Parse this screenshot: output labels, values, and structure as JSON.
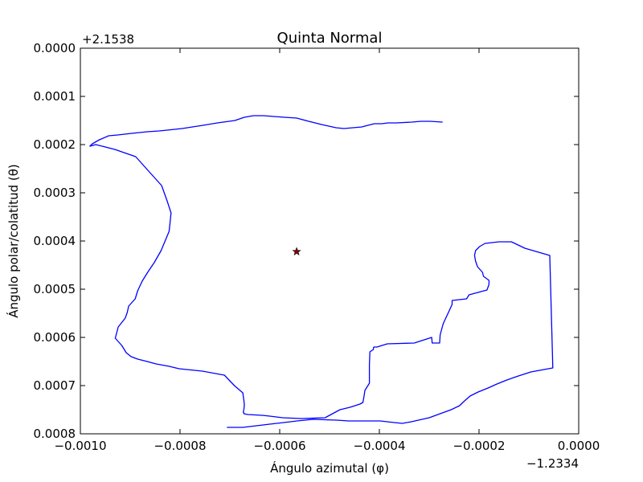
{
  "chart_data": {
    "type": "line",
    "title": "Quinta Normal",
    "xlabel": "Ángulo azimutal (φ)",
    "ylabel": "Ángulo polar/colatitud (θ)",
    "x_offset_label": "−1.2334",
    "y_offset_label": "+2.1538",
    "xlim": [
      -0.001,
      0.0
    ],
    "ylim": [
      0.0008,
      0.0
    ],
    "y_inverted": true,
    "grid": false,
    "x_tick_labels": [
      "−0.0010",
      "−0.0008",
      "−0.0006",
      "−0.0004",
      "−0.0002",
      "0.0000"
    ],
    "x_tick_values": [
      -0.001,
      -0.0008,
      -0.0006,
      -0.0004,
      -0.0002,
      0.0
    ],
    "y_tick_labels": [
      "0.0000",
      "0.0001",
      "0.0002",
      "0.0003",
      "0.0004",
      "0.0005",
      "0.0006",
      "0.0007",
      "0.0008"
    ],
    "y_tick_values": [
      0.0,
      0.0001,
      0.0002,
      0.0003,
      0.0004,
      0.0005,
      0.0006,
      0.0007,
      0.0008
    ],
    "series": [
      {
        "color": "#0000ff",
        "style": "line",
        "x": [
          -0.000706,
          -0.000674,
          -0.000647,
          -0.00062,
          -0.000592,
          -0.000565,
          -0.000533,
          -0.000486,
          -0.000462,
          -0.000429,
          -0.000398,
          -0.00037,
          -0.000354,
          -0.000336,
          -0.0003,
          -0.000278,
          -0.000256,
          -0.000239,
          -0.000229,
          -0.000218,
          -0.000202,
          -0.000182,
          -0.000164,
          -0.000144,
          -0.000121,
          -9.6e-05,
          -5.2e-05,
          -5.8e-05,
          -0.000108,
          -0.000135,
          -0.00016,
          -0.000188,
          -0.000199,
          -0.000207,
          -0.000209,
          -0.000207,
          -0.000203,
          -0.000193,
          -0.000191,
          -0.00018,
          -0.00018,
          -0.000184,
          -0.00022,
          -0.000225,
          -0.000254,
          -0.000254,
          -0.000272,
          -0.000278,
          -0.000279,
          -0.000294,
          -0.000295,
          -0.00033,
          -0.000384,
          -0.000405,
          -0.000411,
          -0.000412,
          -0.000412,
          -0.000419,
          -0.00042,
          -0.00042,
          -0.000429,
          -0.000431,
          -0.000433,
          -0.000439,
          -0.000444,
          -0.000459,
          -0.000479,
          -0.000509,
          -0.000557,
          -0.000594,
          -0.00062,
          -0.000635,
          -0.000664,
          -0.000672,
          -0.000672,
          -0.000673,
          -0.000672,
          -0.000671,
          -0.000672,
          -0.000674,
          -0.000691,
          -0.000711,
          -0.000755,
          -0.000802,
          -0.000822,
          -0.000848,
          -0.000866,
          -0.000885,
          -0.000898,
          -0.000908,
          -0.000917,
          -0.00093,
          -0.000924,
          -0.00091,
          -0.000906,
          -0.000903,
          -0.00089,
          -0.000885,
          -0.000876,
          -0.000865,
          -0.000852,
          -0.000838,
          -0.00083,
          -0.000822,
          -0.00082,
          -0.000818,
          -0.000826,
          -0.000837,
          -0.000866,
          -0.000889,
          -0.000931,
          -0.000969,
          -0.000981,
          -0.000976,
          -0.000962,
          -0.000943,
          -0.000925,
          -0.000897,
          -0.000866,
          -0.000842,
          -0.000826,
          -0.000796,
          -0.000754,
          -0.000725,
          -0.00069,
          -0.000671,
          -0.000653,
          -0.000632,
          -0.000612,
          -0.00059,
          -0.000566,
          -0.000542,
          -0.000516,
          -0.000487,
          -0.000471,
          -0.000453,
          -0.000435,
          -0.000423,
          -0.00041,
          -0.000395,
          -0.000383,
          -0.000366,
          -0.000335,
          -0.000317,
          -0.000298,
          -0.000273
        ],
        "y": [
          0.0007867,
          0.0007867,
          0.0007833,
          0.00078,
          0.0007767,
          0.0007733,
          0.00077,
          0.0007717,
          0.0007733,
          0.0007733,
          0.0007733,
          0.0007767,
          0.0007783,
          0.000775,
          0.0007667,
          0.0007583,
          0.00075,
          0.0007417,
          0.0007317,
          0.0007217,
          0.0007133,
          0.000705,
          0.0006967,
          0.0006883,
          0.00068,
          0.0006717,
          0.0006633,
          0.00043,
          0.000415,
          0.0004017,
          0.0004017,
          0.000405,
          0.0004117,
          0.00042,
          0.00043,
          0.0004417,
          0.0004533,
          0.000465,
          0.0004733,
          0.0004817,
          0.00049,
          0.0005017,
          0.0005117,
          0.00052,
          0.0005233,
          0.0005317,
          0.0005717,
          0.000595,
          0.0006117,
          0.0006117,
          0.0006,
          0.0006117,
          0.0006133,
          0.00062,
          0.00062,
          0.0006217,
          0.000625,
          0.00063,
          0.0006567,
          0.000695,
          0.00071,
          0.0007233,
          0.000735,
          0.0007383,
          0.00074,
          0.000745,
          0.00075,
          0.0007667,
          0.0007683,
          0.0007667,
          0.0007633,
          0.0007617,
          0.00076,
          0.0007583,
          0.0007567,
          0.000755,
          0.00075,
          0.00074,
          0.00073,
          0.000715,
          0.0007,
          0.0006783,
          0.00067,
          0.000665,
          0.00066,
          0.000655,
          0.00065,
          0.000645,
          0.00064,
          0.0006317,
          0.0006167,
          0.0006017,
          0.0005783,
          0.00056,
          0.0005483,
          0.000535,
          0.00052,
          0.0005033,
          0.0004833,
          0.000465,
          0.000445,
          0.00042,
          0.0004,
          0.00038,
          0.0003617,
          0.0003417,
          0.0003167,
          0.000285,
          0.0002517,
          0.000225,
          0.00021,
          0.0002,
          0.0002033,
          0.0001983,
          0.00019,
          0.0001817,
          0.00018,
          0.0001767,
          0.0001733,
          0.0001717,
          0.00017,
          0.0001667,
          0.00016,
          0.000155,
          0.00015,
          0.0001433,
          0.00014,
          0.00014,
          0.0001417,
          0.0001433,
          0.000145,
          0.0001517,
          0.0001583,
          0.000165,
          0.0001667,
          0.000165,
          0.0001633,
          0.00016,
          0.0001567,
          0.0001567,
          0.000155,
          0.000155,
          0.0001533,
          0.0001517,
          0.0001517,
          0.0001533
        ]
      }
    ],
    "marker": {
      "x": -0.000566,
      "y": 0.000422,
      "symbol": "star",
      "color": "#8b0000"
    }
  }
}
